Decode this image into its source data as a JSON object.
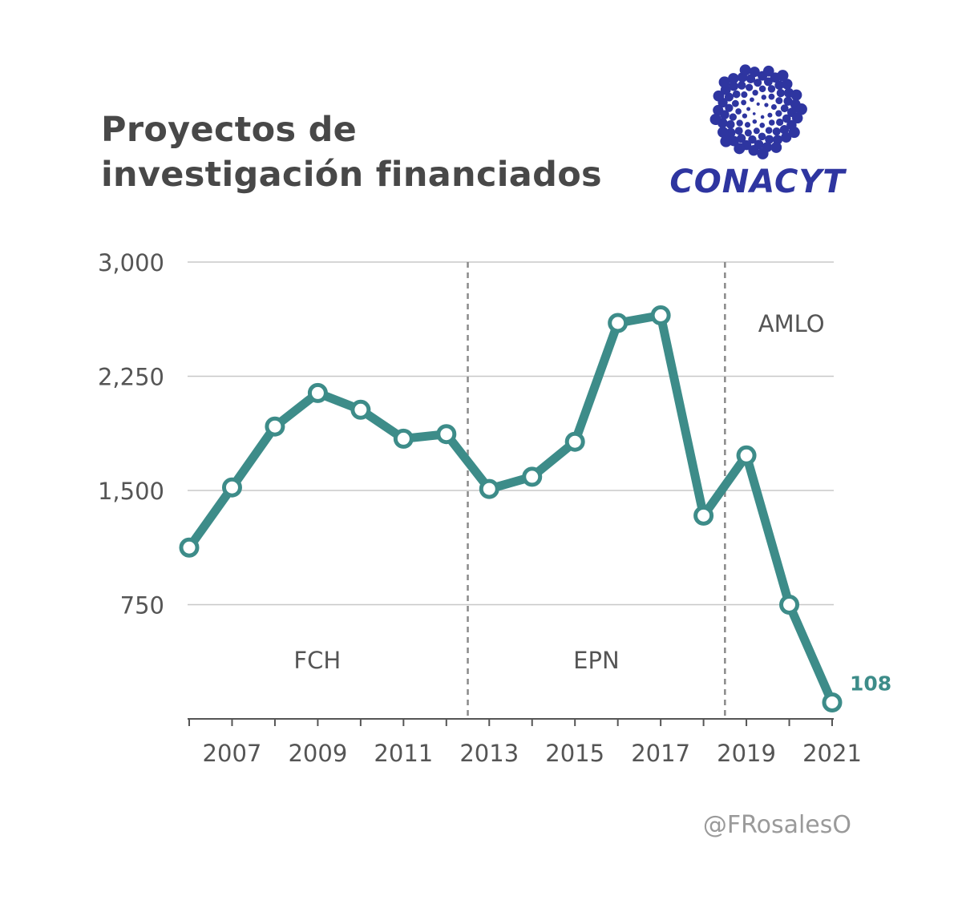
{
  "title_lines": [
    "Proyectos de",
    "investigación financiados"
  ],
  "logo": {
    "name": "CONACYT"
  },
  "credit": "@FRosalesO",
  "colors": {
    "line": "#3d8c89",
    "grid": "#c8c8c8",
    "text": "#555555",
    "logo": "#2e35a0"
  },
  "chart_data": {
    "type": "line",
    "x": [
      2006,
      2007,
      2008,
      2009,
      2010,
      2011,
      2012,
      2013,
      2014,
      2015,
      2016,
      2017,
      2018,
      2019,
      2020,
      2021
    ],
    "series": [
      {
        "values": [
          1125,
          1520,
          1920,
          2140,
          2030,
          1840,
          1870,
          1510,
          1590,
          1820,
          2600,
          2650,
          1335,
          1730,
          750,
          108
        ]
      }
    ],
    "ylim": [
      0,
      3000
    ],
    "yticks": [
      750,
      1500,
      2250,
      3000
    ],
    "ytick_labels": [
      "750",
      "1,500",
      "2,250",
      "3,000"
    ],
    "xticks_labeled": [
      2007,
      2009,
      2011,
      2013,
      2015,
      2017,
      2019,
      2021
    ],
    "xtick_labels": [
      "2007",
      "2009",
      "2011",
      "2013",
      "2015",
      "2017",
      "2019",
      "2021"
    ],
    "periods": [
      {
        "label": "FCH",
        "start": 2006,
        "end": 2012.5
      },
      {
        "label": "EPN",
        "start": 2012.5,
        "end": 2018.5
      },
      {
        "label": "AMLO",
        "start": 2018.5,
        "end": 2021
      }
    ],
    "period_dividers": [
      2012.5,
      2018.5
    ],
    "last_point_label": "108",
    "grid": true,
    "xlabel": "",
    "ylabel": ""
  }
}
